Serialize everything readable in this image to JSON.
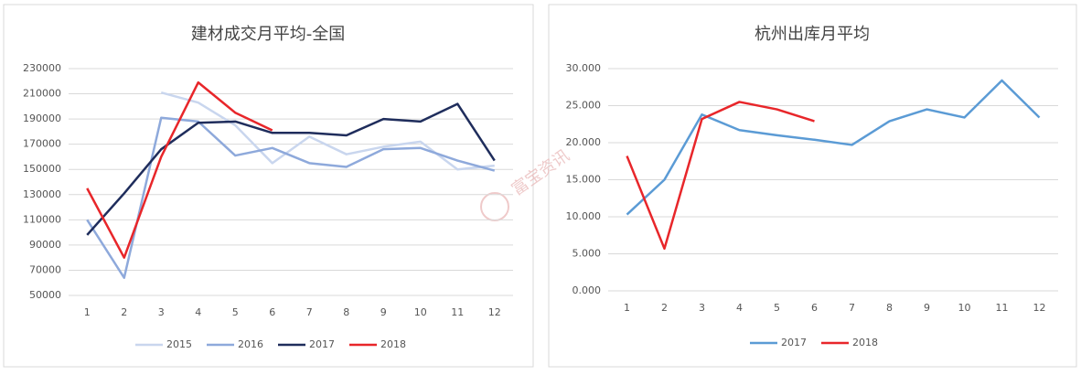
{
  "chart_data": [
    {
      "type": "line",
      "title": "建材成交月平均-全国",
      "x": [
        1,
        2,
        3,
        4,
        5,
        6,
        7,
        8,
        9,
        10,
        11,
        12
      ],
      "ylim": [
        50000,
        230000
      ],
      "yticks": [
        50000,
        70000,
        90000,
        110000,
        130000,
        150000,
        170000,
        190000,
        210000,
        230000
      ],
      "grid": true,
      "legend": "bottom",
      "series": [
        {
          "name": "2015",
          "color": "#c9d6ee",
          "values": [
            null,
            null,
            211000,
            203000,
            185000,
            155000,
            176000,
            162000,
            168000,
            172000,
            150000,
            153000
          ]
        },
        {
          "name": "2016",
          "color": "#8ea9db",
          "values": [
            110000,
            64000,
            191000,
            188000,
            161000,
            167000,
            155000,
            152000,
            166000,
            167000,
            157000,
            149000
          ]
        },
        {
          "name": "2017",
          "color": "#1f2d5c",
          "values": [
            98000,
            131000,
            166000,
            187000,
            188000,
            179000,
            179000,
            177000,
            190000,
            188000,
            202000,
            157000
          ]
        },
        {
          "name": "2018",
          "color": "#e8262a",
          "values": [
            135000,
            80000,
            160000,
            219000,
            195000,
            181000,
            null,
            null,
            null,
            null,
            null,
            null
          ]
        }
      ]
    },
    {
      "type": "line",
      "title": "杭州出库月平均",
      "x": [
        1,
        2,
        3,
        4,
        5,
        6,
        7,
        8,
        9,
        10,
        11,
        12
      ],
      "ylim": [
        0,
        30
      ],
      "yticks": [
        {
          "value": 0,
          "label": "0.000"
        },
        {
          "value": 5,
          "label": "5.000"
        },
        {
          "value": 10,
          "label": "10.000"
        },
        {
          "value": 15,
          "label": "15.000"
        },
        {
          "value": 20,
          "label": "20.000"
        },
        {
          "value": 25,
          "label": "25.000"
        },
        {
          "value": 30,
          "label": "30.000"
        }
      ],
      "grid": true,
      "legend": "bottom",
      "series": [
        {
          "name": "2017",
          "color": "#5b9bd5",
          "values": [
            10.3,
            15.0,
            23.8,
            21.7,
            21.0,
            20.4,
            19.7,
            22.9,
            24.5,
            23.4,
            28.4,
            23.4
          ]
        },
        {
          "name": "2018",
          "color": "#e8262a",
          "values": [
            18.2,
            5.7,
            23.2,
            25.5,
            24.5,
            22.9,
            null,
            null,
            null,
            null,
            null,
            null
          ]
        }
      ]
    }
  ],
  "watermark": "富宝资讯"
}
